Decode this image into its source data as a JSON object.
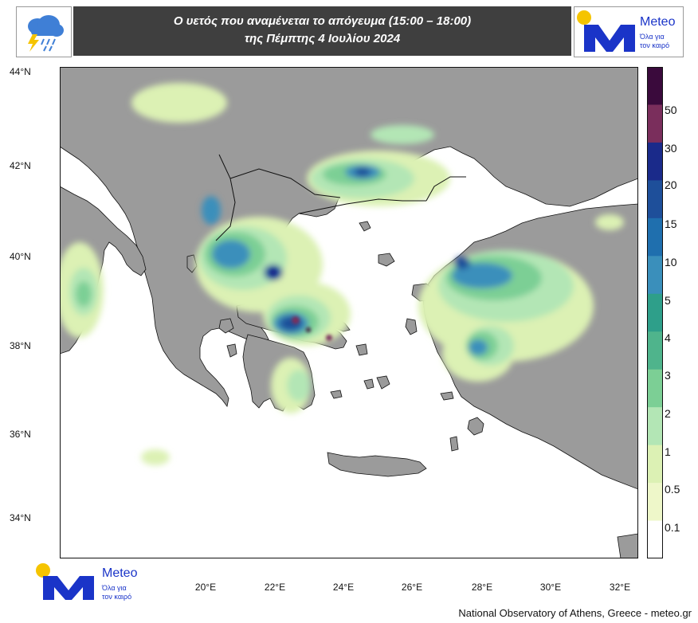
{
  "header": {
    "title_line1": "Ο υετός που αναμένεται το απόγευμα (15:00 – 18:00)",
    "title_line2": "της Πέμπτης 4 Ιουλίου 2024",
    "weather_icon": "storm-cloud-icon"
  },
  "logo": {
    "brand": "Meteo",
    "tagline_line1": "Όλα για",
    "tagline_line2": "τον καιρό",
    "accent_color": "#1a34c8",
    "sun_color": "#f5c400"
  },
  "map": {
    "lat_labels": [
      "44°N",
      "42°N",
      "40°N",
      "38°N",
      "36°N",
      "34°N"
    ],
    "lon_labels": [
      "20°E",
      "22°E",
      "24°E",
      "26°E",
      "28°E",
      "30°E",
      "32°E"
    ],
    "land_color": "#9b9b9b",
    "sea_color": "#ffffff"
  },
  "colorbar": {
    "labels": [
      "50",
      "30",
      "20",
      "15",
      "10",
      "5",
      "4",
      "3",
      "2",
      "1",
      "0.5",
      "0.1"
    ],
    "colors": [
      "#3a0a3c",
      "#7a2e5c",
      "#1a2a8a",
      "#1e4f9a",
      "#1f6fae",
      "#3a8fbb",
      "#2e9f8a",
      "#4fb48c",
      "#7ccf95",
      "#b3e6b5",
      "#dcf1b4",
      "#eef7c9",
      "#ffffff"
    ]
  },
  "footer": {
    "credit": "National Observatory of Athens, Greece - meteo.gr"
  }
}
